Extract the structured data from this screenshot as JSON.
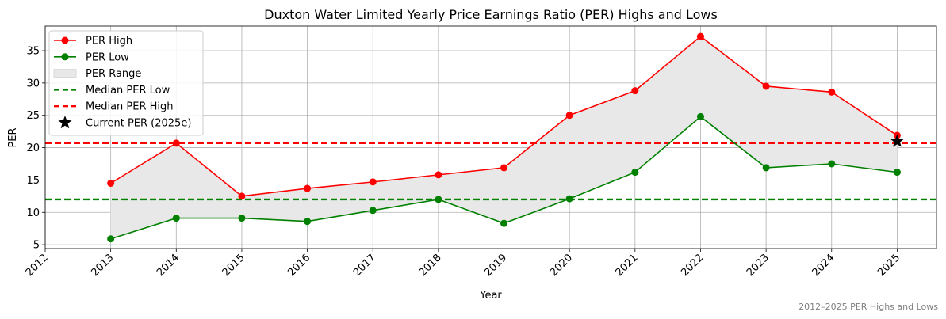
{
  "chart_data": {
    "type": "line",
    "title": "Duxton Water Limited Yearly Price Earnings Ratio (PER) Highs and Lows",
    "xlabel": "Year",
    "ylabel": "PER",
    "x_ticks": [
      "2012",
      "2013",
      "2014",
      "2015",
      "2016",
      "2017",
      "2018",
      "2019",
      "2020",
      "2021",
      "2022",
      "2023",
      "2024",
      "2025"
    ],
    "xlim": [
      2012,
      2025.6
    ],
    "ylim": [
      4.4,
      38.8
    ],
    "y_ticks": [
      5,
      10,
      15,
      20,
      25,
      30,
      35
    ],
    "grid": true,
    "legend_position": "top-left",
    "x": [
      2013,
      2014,
      2015,
      2016,
      2017,
      2018,
      2019,
      2020,
      2021,
      2022,
      2023,
      2024,
      2025
    ],
    "series": [
      {
        "name": "PER High",
        "color": "#ff0000",
        "values": [
          14.5,
          20.7,
          12.5,
          13.7,
          14.7,
          15.8,
          16.9,
          25.0,
          28.8,
          37.2,
          29.5,
          28.6,
          21.9
        ]
      },
      {
        "name": "PER Low",
        "color": "#008000",
        "values": [
          5.9,
          9.1,
          9.1,
          8.6,
          10.3,
          12.0,
          8.3,
          12.1,
          16.2,
          24.8,
          16.9,
          17.5,
          16.2
        ]
      }
    ],
    "range_label": "PER Range",
    "range_color": "#e8e8e8",
    "median_low": {
      "name": "Median PER Low",
      "value": 12.0,
      "color": "#008000"
    },
    "median_high": {
      "name": "Median PER High",
      "value": 20.7,
      "color": "#ff0000"
    },
    "current": {
      "name": "Current PER (2025e)",
      "x": 2025,
      "value": 21.0,
      "color": "#000000"
    },
    "footnote": "2012–2025 PER Highs and Lows"
  }
}
